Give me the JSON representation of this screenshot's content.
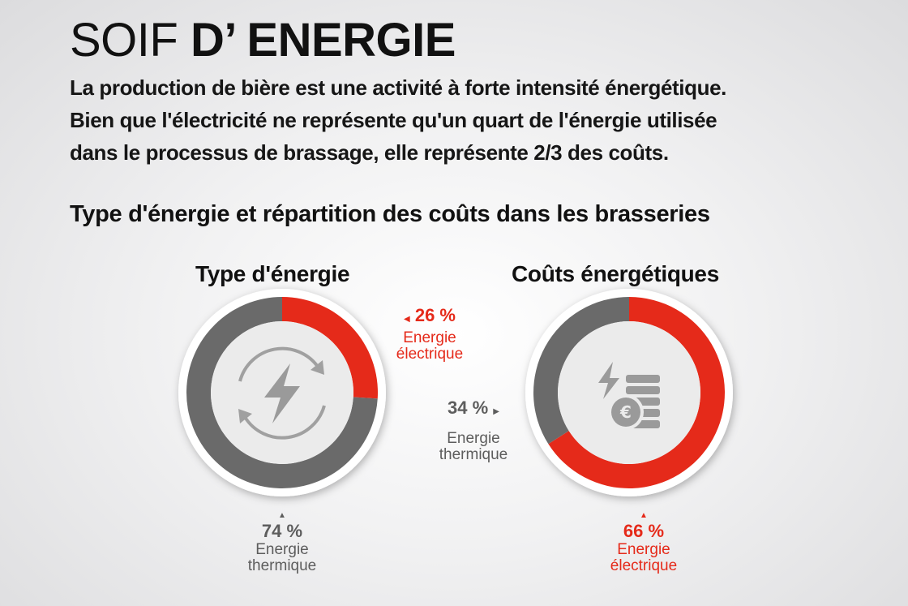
{
  "header": {
    "title_light": "SOIF ",
    "title_bold": "D’ ENERGIE",
    "intro_line1": "La production de bière est une activité à forte intensité énergétique.",
    "intro_line2": "Bien que l'électricité ne représente qu'un quart de l'énergie utilisée",
    "intro_line3_a": "dans le processus de brassage, elle représente ",
    "intro_line3_b": "2/3 des coûts.",
    "subtitle": "Type d'énergie et répartition des coûts dans les brasseries"
  },
  "colors": {
    "electric": "#e52a1a",
    "thermal": "#6a6a6a",
    "inner": "#ebebeb",
    "icon": "#9a9a9a"
  },
  "icons": {
    "left": "energy-cycle-icon",
    "right": "euro-coins-icon"
  },
  "chart_data": [
    {
      "type": "pie",
      "title": "Type d'énergie",
      "slices": [
        {
          "label": "Energie électrique",
          "value_label": "26 %",
          "value": 26,
          "color": "#e52a1a"
        },
        {
          "label": "Energie thermique",
          "value_label": "74 %",
          "value": 74,
          "color": "#6a6a6a"
        }
      ]
    },
    {
      "type": "pie",
      "title": "Coûts énergétiques",
      "slices": [
        {
          "label": "Energie électrique",
          "value_label": "66 %",
          "value": 66,
          "color": "#e52a1a"
        },
        {
          "label": "Energie thermique",
          "value_label": "34 %",
          "value": 34,
          "color": "#6a6a6a"
        }
      ]
    }
  ],
  "labels": {
    "left_electric_name_1": "Energie",
    "left_electric_name_2": "électrique",
    "left_thermal_name_1": "Energie",
    "left_thermal_name_2": "thermique",
    "right_thermal_name_1": "Energie",
    "right_thermal_name_2": "thermique",
    "right_electric_name_1": "Energie",
    "right_electric_name_2": "électrique"
  }
}
